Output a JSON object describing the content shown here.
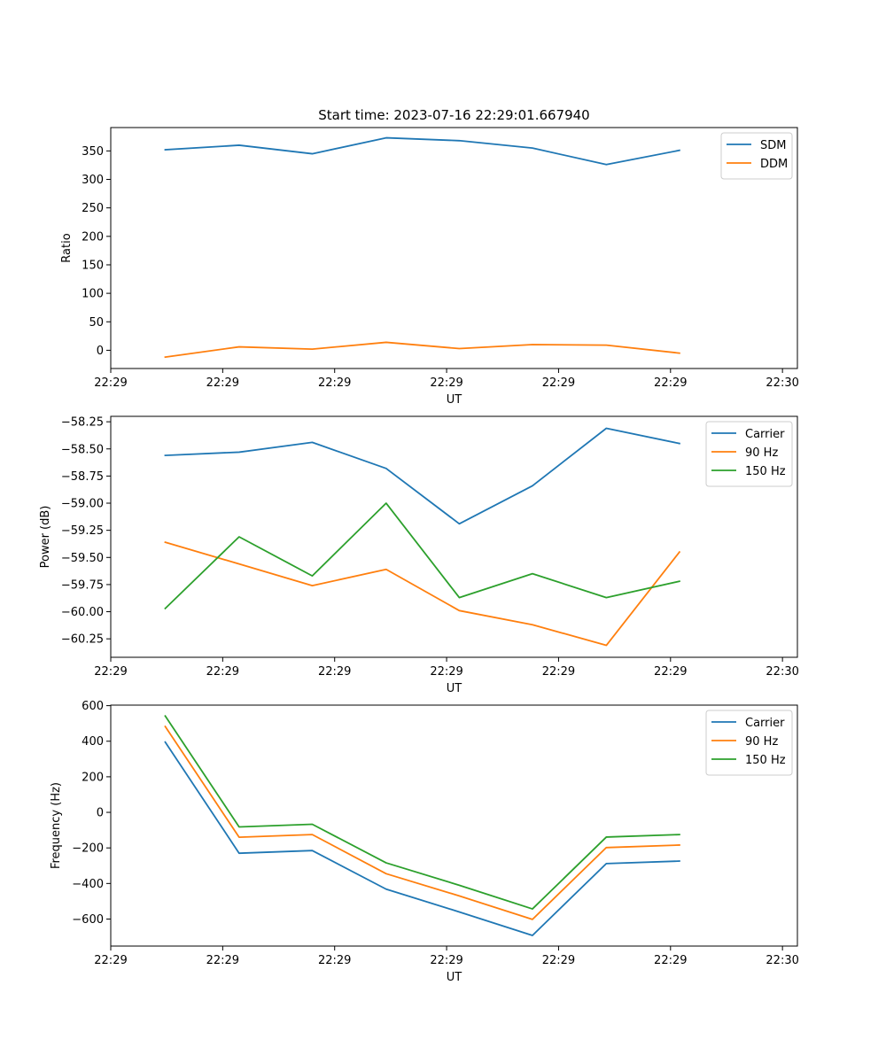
{
  "chart_data": [
    {
      "type": "line",
      "title": "Start time: 2023-07-16 22:29:01.667940",
      "xlabel": "UT",
      "ylabel": "Ratio",
      "xlim": [
        0,
        9.2
      ],
      "ylim": [
        -32,
        391
      ],
      "xtick_positions": [
        0,
        1.5,
        3,
        4.5,
        6,
        7.5,
        9
      ],
      "xtick_labels": [
        "22:29",
        "22:29",
        "22:29",
        "22:29",
        "22:29",
        "22:29",
        "22:30"
      ],
      "yticks": [
        0,
        50,
        100,
        150,
        200,
        250,
        300,
        350
      ],
      "ytick_labels": [
        "0",
        "50",
        "100",
        "150",
        "200",
        "250",
        "300",
        "350"
      ],
      "x": [
        0.73,
        1.72,
        2.7,
        3.69,
        4.67,
        5.65,
        6.64,
        7.62
      ],
      "series": [
        {
          "name": "SDM",
          "color": "#1f77b4",
          "values": [
            352,
            360,
            345,
            373,
            368,
            355,
            326,
            351
          ]
        },
        {
          "name": "DDM",
          "color": "#ff7f0e",
          "values": [
            -12,
            6,
            2,
            14,
            3,
            10,
            9,
            -5
          ]
        }
      ],
      "legend": "top-right"
    },
    {
      "type": "line",
      "title": "",
      "xlabel": "UT",
      "ylabel": "Power (dB)",
      "xlim": [
        0,
        9.2
      ],
      "ylim": [
        -60.42,
        -58.2
      ],
      "xtick_positions": [
        0,
        1.5,
        3,
        4.5,
        6,
        7.5,
        9
      ],
      "xtick_labels": [
        "22:29",
        "22:29",
        "22:29",
        "22:29",
        "22:29",
        "22:29",
        "22:30"
      ],
      "yticks": [
        -60.25,
        -60.0,
        -59.75,
        -59.5,
        -59.25,
        -59.0,
        -58.75,
        -58.5,
        -58.25
      ],
      "ytick_labels": [
        "−60.25",
        "−60.00",
        "−59.75",
        "−59.50",
        "−59.25",
        "−59.00",
        "−58.75",
        "−58.50",
        "−58.25"
      ],
      "x": [
        0.73,
        1.72,
        2.7,
        3.69,
        4.67,
        5.65,
        6.64,
        7.62
      ],
      "series": [
        {
          "name": "Carrier",
          "color": "#1f77b4",
          "values": [
            -58.56,
            -58.53,
            -58.44,
            -58.68,
            -59.19,
            -58.84,
            -58.31,
            -58.45
          ]
        },
        {
          "name": "90 Hz",
          "color": "#ff7f0e",
          "values": [
            -59.36,
            -59.56,
            -59.76,
            -59.61,
            -59.99,
            -60.12,
            -60.31,
            -59.45
          ]
        },
        {
          "name": "150 Hz",
          "color": "#2ca02c",
          "values": [
            -59.97,
            -59.31,
            -59.67,
            -59.0,
            -59.87,
            -59.65,
            -59.87,
            -59.72
          ]
        }
      ],
      "legend": "top-right"
    },
    {
      "type": "line",
      "title": "",
      "xlabel": "UT",
      "ylabel": "Frequency (Hz)",
      "xlim": [
        0,
        9.2
      ],
      "ylim": [
        -752,
        603
      ],
      "xtick_positions": [
        0,
        1.5,
        3,
        4.5,
        6,
        7.5,
        9
      ],
      "xtick_labels": [
        "22:29",
        "22:29",
        "22:29",
        "22:29",
        "22:29",
        "22:29",
        "22:30"
      ],
      "yticks": [
        -600,
        -400,
        -200,
        0,
        200,
        400,
        600
      ],
      "ytick_labels": [
        "−600",
        "−400",
        "−200",
        "0",
        "200",
        "400",
        "600"
      ],
      "x": [
        0.73,
        1.72,
        2.7,
        3.69,
        4.67,
        5.65,
        6.64,
        7.62
      ],
      "series": [
        {
          "name": "Carrier",
          "color": "#1f77b4",
          "values": [
            395,
            -230,
            -215,
            -432,
            -560,
            -692,
            -288,
            -274
          ]
        },
        {
          "name": "90 Hz",
          "color": "#ff7f0e",
          "values": [
            483,
            -140,
            -125,
            -345,
            -470,
            -602,
            -198,
            -184
          ]
        },
        {
          "name": "150 Hz",
          "color": "#2ca02c",
          "values": [
            542,
            -82,
            -67,
            -284,
            -410,
            -543,
            -139,
            -125
          ]
        }
      ],
      "legend": "top-right"
    }
  ]
}
